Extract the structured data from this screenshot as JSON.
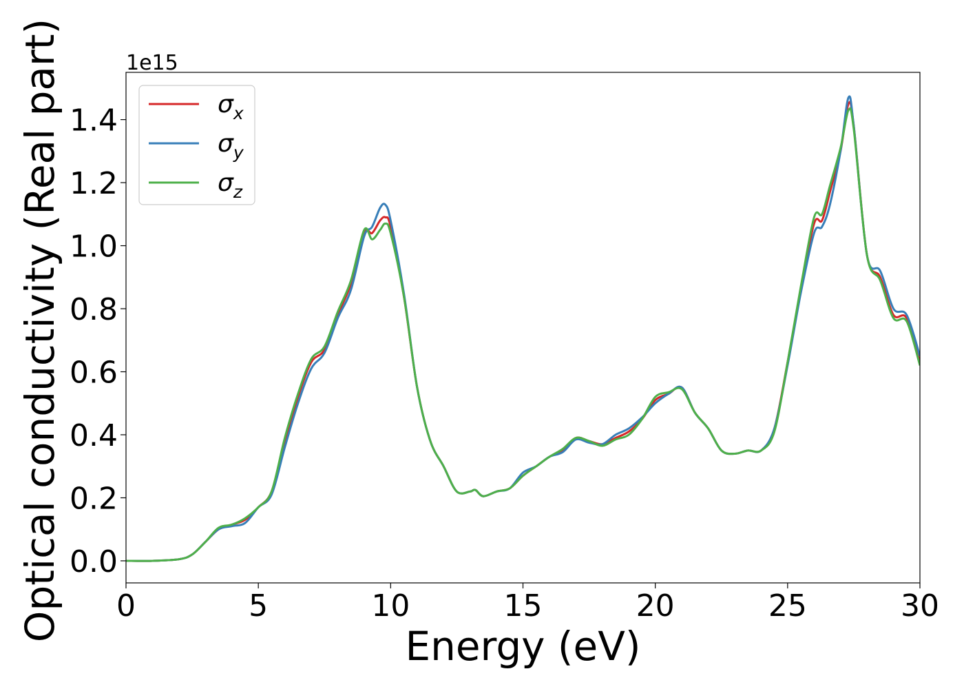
{
  "chart_data": {
    "type": "line",
    "title": "",
    "xlabel": "Energy (eV)",
    "ylabel": "Optical conductivity (Real part)",
    "y_offset_label": "1e15",
    "xlim": [
      0,
      30
    ],
    "ylim": [
      -0.07,
      1.55
    ],
    "y_scale_factor": 1000000000000000.0,
    "grid": false,
    "legend_position": "upper left",
    "xticks": [
      0,
      5,
      10,
      15,
      20,
      25,
      30
    ],
    "xtick_labels": [
      "0",
      "5",
      "10",
      "15",
      "20",
      "25",
      "30"
    ],
    "yticks": [
      0.0,
      0.2,
      0.4,
      0.6,
      0.8,
      1.0,
      1.2,
      1.4
    ],
    "ytick_labels": [
      "0.0",
      "0.2",
      "0.4",
      "0.6",
      "0.8",
      "1.0",
      "1.2",
      "1.4"
    ],
    "series": [
      {
        "name": "σ_x",
        "legend_symbol": "σ",
        "legend_subscript": "x",
        "color": "#d62728",
        "x": [
          0,
          1,
          2,
          2.5,
          3,
          3.5,
          4,
          4.5,
          5,
          5.5,
          6,
          6.5,
          7,
          7.5,
          8,
          8.5,
          9,
          9.3,
          9.6,
          9.8,
          10,
          10.5,
          11,
          11.5,
          12,
          12.5,
          13,
          13.2,
          13.5,
          14,
          14.5,
          15,
          15.5,
          16,
          16.5,
          17,
          17.5,
          18,
          18.5,
          19,
          19.5,
          20,
          20.5,
          21,
          21.5,
          22,
          22.5,
          23,
          23.5,
          24,
          24.5,
          25,
          25.5,
          26,
          26.3,
          26.6,
          27,
          27.3,
          27.5,
          28,
          28.5,
          29,
          29.5,
          30
        ],
        "y": [
          0,
          0.0,
          0.005,
          0.02,
          0.06,
          0.1,
          0.115,
          0.13,
          0.17,
          0.22,
          0.38,
          0.52,
          0.63,
          0.67,
          0.78,
          0.88,
          1.04,
          1.04,
          1.08,
          1.09,
          1.06,
          0.84,
          0.55,
          0.38,
          0.3,
          0.22,
          0.22,
          0.225,
          0.205,
          0.22,
          0.23,
          0.27,
          0.3,
          0.33,
          0.35,
          0.39,
          0.38,
          0.37,
          0.39,
          0.41,
          0.45,
          0.51,
          0.53,
          0.55,
          0.47,
          0.42,
          0.35,
          0.34,
          0.35,
          0.35,
          0.42,
          0.63,
          0.86,
          1.07,
          1.08,
          1.17,
          1.3,
          1.45,
          1.38,
          0.97,
          0.9,
          0.78,
          0.77,
          0.63
        ]
      },
      {
        "name": "σ_y",
        "legend_symbol": "σ",
        "legend_subscript": "y",
        "color": "#377eb8",
        "x": [
          0,
          1,
          2,
          2.5,
          3,
          3.5,
          4,
          4.5,
          5,
          5.5,
          6,
          6.5,
          7,
          7.5,
          8,
          8.5,
          9,
          9.3,
          9.6,
          9.8,
          10,
          10.5,
          11,
          11.5,
          12,
          12.5,
          13,
          13.2,
          13.5,
          14,
          14.5,
          15,
          15.5,
          16,
          16.5,
          17,
          17.5,
          18,
          18.5,
          19,
          19.5,
          20,
          20.5,
          21,
          21.5,
          22,
          22.5,
          23,
          23.5,
          24,
          24.5,
          25,
          25.5,
          26,
          26.3,
          26.6,
          27,
          27.3,
          27.5,
          28,
          28.5,
          29,
          29.5,
          30
        ],
        "y": [
          0,
          0.0,
          0.005,
          0.02,
          0.06,
          0.1,
          0.11,
          0.12,
          0.17,
          0.21,
          0.36,
          0.5,
          0.61,
          0.66,
          0.77,
          0.86,
          1.03,
          1.06,
          1.12,
          1.13,
          1.08,
          0.85,
          0.55,
          0.38,
          0.3,
          0.22,
          0.22,
          0.225,
          0.205,
          0.22,
          0.23,
          0.28,
          0.3,
          0.33,
          0.345,
          0.385,
          0.375,
          0.37,
          0.4,
          0.42,
          0.455,
          0.5,
          0.53,
          0.55,
          0.47,
          0.42,
          0.35,
          0.34,
          0.35,
          0.35,
          0.42,
          0.62,
          0.85,
          1.04,
          1.06,
          1.13,
          1.3,
          1.47,
          1.38,
          0.97,
          0.92,
          0.8,
          0.78,
          0.65
        ]
      },
      {
        "name": "σ_z",
        "legend_symbol": "σ",
        "legend_subscript": "z",
        "color": "#4daf4a",
        "x": [
          0,
          1,
          2,
          2.5,
          3,
          3.5,
          4,
          4.5,
          5,
          5.5,
          6,
          6.5,
          7,
          7.5,
          8,
          8.5,
          9,
          9.3,
          9.6,
          9.8,
          10,
          10.5,
          11,
          11.5,
          12,
          12.5,
          13,
          13.2,
          13.5,
          14,
          14.5,
          15,
          15.5,
          16,
          16.5,
          17,
          17.5,
          18,
          18.5,
          19,
          19.5,
          20,
          20.5,
          21,
          21.5,
          22,
          22.5,
          23,
          23.5,
          24,
          24.5,
          25,
          25.5,
          26,
          26.3,
          26.6,
          27,
          27.3,
          27.5,
          28,
          28.5,
          29,
          29.5,
          30
        ],
        "y": [
          0,
          0.0,
          0.005,
          0.02,
          0.06,
          0.105,
          0.115,
          0.135,
          0.17,
          0.22,
          0.39,
          0.53,
          0.64,
          0.68,
          0.79,
          0.89,
          1.05,
          1.02,
          1.05,
          1.07,
          1.04,
          0.84,
          0.55,
          0.38,
          0.3,
          0.22,
          0.22,
          0.225,
          0.205,
          0.22,
          0.23,
          0.27,
          0.3,
          0.33,
          0.355,
          0.39,
          0.38,
          0.365,
          0.385,
          0.4,
          0.45,
          0.52,
          0.535,
          0.545,
          0.47,
          0.42,
          0.35,
          0.34,
          0.35,
          0.35,
          0.41,
          0.63,
          0.87,
          1.09,
          1.1,
          1.19,
          1.31,
          1.43,
          1.37,
          0.97,
          0.89,
          0.77,
          0.76,
          0.62
        ]
      }
    ]
  }
}
